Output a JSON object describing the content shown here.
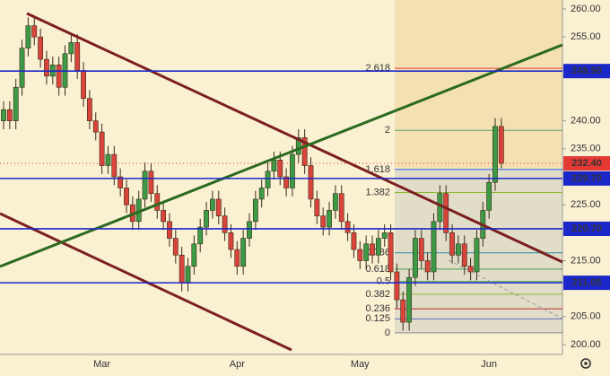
{
  "chart_data": {
    "type": "candlestick",
    "up_color": "#3d9a45",
    "down_color": "#d9453a",
    "categories": [
      null,
      null,
      null,
      null,
      null,
      null,
      null,
      null,
      null,
      null,
      null,
      null,
      null,
      null,
      null,
      null,
      "Mar",
      null,
      null,
      null,
      null,
      null,
      null,
      null,
      null,
      null,
      null,
      null,
      null,
      null,
      null,
      null,
      null,
      null,
      null,
      null,
      null,
      null,
      "Apr",
      null,
      null,
      null,
      null,
      null,
      null,
      null,
      null,
      null,
      null,
      null,
      null,
      null,
      null,
      null,
      null,
      null,
      null,
      null,
      "May",
      null,
      null,
      null,
      null,
      null,
      null,
      null,
      null,
      null,
      null,
      null,
      null,
      null,
      null,
      null,
      null,
      null,
      null,
      null,
      null,
      "Jun",
      null,
      null
    ],
    "open": [
      240,
      242,
      240,
      246,
      253,
      257,
      255,
      251,
      248,
      250,
      246,
      252,
      254,
      249,
      244,
      240,
      238,
      232,
      234,
      230,
      228,
      225,
      222,
      226,
      231,
      227,
      224,
      222,
      219,
      216,
      211,
      214,
      218,
      221,
      224,
      226,
      223,
      220,
      217,
      214,
      219,
      222,
      226,
      228,
      231,
      233,
      230,
      228,
      234,
      237,
      232,
      226,
      223,
      221,
      224,
      227,
      222,
      220,
      217,
      215,
      218,
      216,
      219,
      220,
      213,
      208,
      204,
      212,
      219,
      215,
      213,
      222,
      227,
      220,
      216,
      218,
      214,
      213,
      219,
      224,
      229,
      239
    ],
    "high": [
      243.5,
      243.5,
      247.5,
      254.5,
      258.5,
      258.5,
      256.5,
      252.5,
      251.5,
      251.5,
      253.5,
      255.5,
      255.5,
      250.5,
      245.5,
      241.5,
      239.5,
      235.5,
      235.5,
      231.5,
      229.5,
      226.5,
      227.5,
      232.5,
      232.5,
      228.5,
      225.5,
      223.5,
      220.5,
      217.5,
      215.5,
      219.5,
      222.5,
      225.5,
      227.5,
      227.5,
      224.5,
      221.5,
      218.5,
      220.5,
      223.5,
      227.5,
      229.5,
      232.5,
      234.5,
      234.5,
      231.5,
      235.5,
      238.5,
      238.5,
      233.5,
      227.5,
      224.5,
      225.5,
      228.5,
      228.5,
      223.5,
      221.5,
      218.5,
      219.5,
      219.5,
      220.5,
      221.5,
      221.5,
      214.5,
      209.5,
      213.5,
      220.5,
      220.5,
      216.5,
      223.5,
      228.5,
      228.5,
      221.5,
      219.5,
      219.5,
      215.5,
      220.5,
      225.5,
      230.5,
      240.5,
      240.5
    ],
    "low": [
      238.5,
      238.5,
      238.5,
      244.5,
      251.5,
      253.5,
      249.5,
      246.5,
      246.5,
      244.5,
      244.5,
      250.5,
      247.5,
      242.5,
      238.5,
      236.5,
      230.5,
      230.5,
      228.5,
      226.5,
      223.5,
      220.5,
      220.5,
      224.5,
      225.5,
      222.5,
      220.5,
      217.5,
      214.5,
      209.5,
      209.5,
      212.5,
      216.5,
      219.5,
      222.5,
      221.5,
      218.5,
      215.5,
      212.5,
      212.5,
      217.5,
      220.5,
      224.5,
      226.5,
      229.5,
      228.5,
      226.5,
      226.5,
      232.5,
      230.5,
      224.5,
      221.5,
      219.5,
      219.5,
      222.5,
      220.5,
      218.5,
      215.5,
      213.5,
      213.5,
      214.5,
      214.5,
      217.5,
      211.5,
      206.5,
      202.5,
      202.5,
      210.5,
      213.5,
      211.5,
      211.5,
      220.5,
      218.5,
      214.5,
      214.5,
      212.5,
      211.5,
      211.5,
      217.5,
      222.5,
      227.5,
      231.5
    ],
    "close": [
      242,
      240,
      246,
      253,
      257,
      255,
      251,
      248,
      250,
      246,
      252,
      254,
      249,
      244,
      240,
      238,
      232,
      234,
      230,
      228,
      225,
      222,
      226,
      231,
      227,
      224,
      222,
      219,
      216,
      211,
      214,
      218,
      221,
      224,
      226,
      223,
      220,
      217,
      214,
      219,
      222,
      226,
      228,
      231,
      233,
      230,
      228,
      234,
      237,
      232,
      226,
      223,
      221,
      224,
      227,
      222,
      220,
      217,
      215,
      218,
      216,
      219,
      220,
      213,
      208,
      204,
      212,
      219,
      215,
      213,
      222,
      227,
      220,
      216,
      218,
      214,
      213,
      219,
      224,
      229,
      239,
      232.4
    ],
    "ylim": [
      200,
      260
    ],
    "yticks": [
      {
        "value": 200,
        "label": "200.00"
      },
      {
        "value": 205,
        "label": "205.00"
      },
      {
        "value": 215,
        "label": "215.00"
      },
      {
        "value": 225,
        "label": "225.00"
      },
      {
        "value": 235,
        "label": "235.00"
      },
      {
        "value": 240,
        "label": "240.00"
      },
      {
        "value": 255,
        "label": "255.00"
      },
      {
        "value": 260,
        "label": "260.00"
      }
    ],
    "levels": [
      {
        "value": 248.9,
        "label": "248.90"
      },
      {
        "value": 229.7,
        "label": "229.70"
      },
      {
        "value": 220.7,
        "label": "220.70"
      },
      {
        "value": 211.05,
        "label": "211.05"
      }
    ],
    "level_color": "#1c27c9",
    "last_price": {
      "value": 232.4,
      "label": "232.40"
    },
    "last_price_color": "#e53935",
    "fib_levels": [
      {
        "label": "2.618",
        "value": 249.4,
        "color": "#e53935"
      },
      {
        "label": "2",
        "value": 238.3,
        "color": "#5a9e6f"
      },
      {
        "label": "1.618",
        "value": 231.3,
        "color": "#2962ff"
      },
      {
        "label": "1.382",
        "value": 227.2,
        "color": "#8bb82d"
      },
      {
        "label": "0.786",
        "value": 216.4,
        "color": "#1f8aa6"
      },
      {
        "label": "0.618",
        "value": 213.5,
        "color": "#43a047"
      },
      {
        "label": "0.5",
        "value": 211.3,
        "color": "#4caf50"
      },
      {
        "label": "0.382",
        "value": 209.0,
        "color": "#8bb82d"
      },
      {
        "label": "0.236",
        "value": 206.4,
        "color": "#c62828"
      },
      {
        "label": "0.125",
        "value": 204.6,
        "color": "#5c6bc0"
      },
      {
        "label": "0",
        "value": 202.1,
        "color": "#888888"
      }
    ]
  }
}
